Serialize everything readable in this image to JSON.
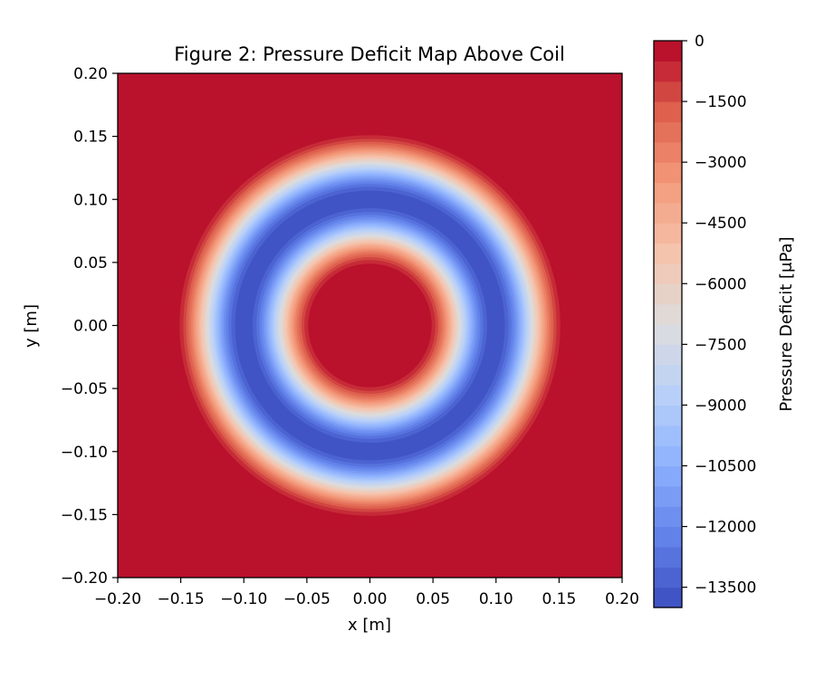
{
  "chart_data": {
    "type": "heatmap",
    "subtype": "filled-contour",
    "title": "Figure 2: Pressure Deficit Map Above Coil",
    "xlabel": "x [m]",
    "ylabel": "y [m]",
    "xlim": [
      -0.2,
      0.2
    ],
    "ylim": [
      -0.2,
      0.2
    ],
    "x_ticks": [
      "−0.20",
      "−0.15",
      "−0.10",
      "−0.05",
      "0.00",
      "0.05",
      "0.10",
      "0.15",
      "0.20"
    ],
    "y_ticks": [
      "−0.20",
      "−0.15",
      "−0.10",
      "−0.05",
      "0.00",
      "0.05",
      "0.10",
      "0.15",
      "0.20"
    ],
    "x_tick_values": [
      -0.2,
      -0.15,
      -0.1,
      -0.05,
      0.0,
      0.05,
      0.1,
      0.15,
      0.2
    ],
    "y_tick_values": [
      -0.2,
      -0.15,
      -0.1,
      -0.05,
      0.0,
      0.05,
      0.1,
      0.15,
      0.2
    ],
    "grid": false,
    "colormap": "coolwarm",
    "field": {
      "shape": "radially symmetric ring",
      "center": [
        0.0,
        0.0
      ],
      "ring_peak_radius_m": 0.1,
      "ring_half_width_m": 0.058,
      "peak_value": -14000,
      "outside_value": 0,
      "units": "μPa"
    },
    "colorbar": {
      "label": "Pressure Deficit [μPa]",
      "min": -14000,
      "max": 0,
      "levels": 28,
      "ticks": [
        "0",
        "−1500",
        "−3000",
        "−4500",
        "−6000",
        "−7500",
        "−9000",
        "−10500",
        "−12000",
        "−13500"
      ],
      "tick_values": [
        0,
        -1500,
        -3000,
        -4500,
        -6000,
        -7500,
        -9000,
        -10500,
        -12000,
        -13500
      ]
    }
  }
}
